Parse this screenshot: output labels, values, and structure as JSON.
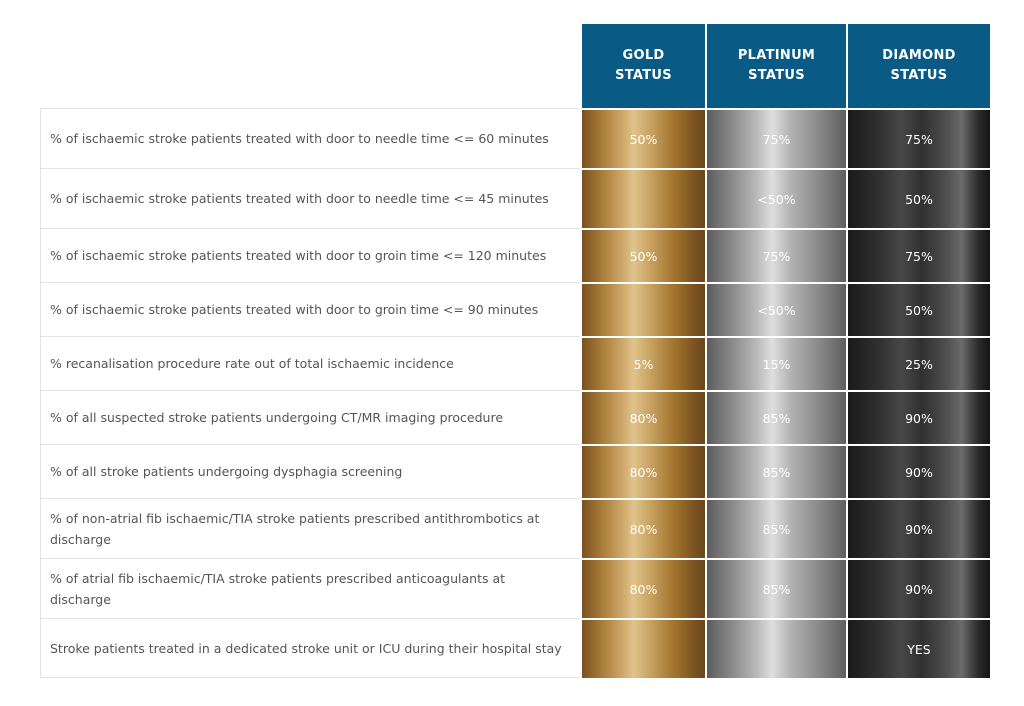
{
  "headers": {
    "gold": "GOLD\nSTATUS",
    "platinum": "PLATINUM\nSTATUS",
    "diamond": "DIAMOND\nSTATUS"
  },
  "rows": [
    {
      "label": "% of ischaemic stroke patients treated with door to needle time <= 60 minutes",
      "gold": "50%",
      "platinum": "75%",
      "diamond": "75%"
    },
    {
      "label": "% of ischaemic stroke patients treated with door to needle time <= 45 minutes",
      "gold": "",
      "platinum": "<50%",
      "diamond": "50%"
    },
    {
      "label": "% of ischaemic stroke patients treated with door to groin time <= 120 minutes",
      "gold": "50%",
      "platinum": "75%",
      "diamond": "75%"
    },
    {
      "label": "% of ischaemic stroke patients treated with door to groin time <= 90 minutes",
      "gold": "",
      "platinum": "<50%",
      "diamond": "50%"
    },
    {
      "label": "% recanalisation procedure rate out of total ischaemic incidence",
      "gold": "5%",
      "platinum": "15%",
      "diamond": "25%"
    },
    {
      "label": "% of all suspected stroke patients undergoing CT/MR imaging procedure",
      "gold": "80%",
      "platinum": "85%",
      "diamond": "90%"
    },
    {
      "label": "% of all stroke patients undergoing dysphagia screening",
      "gold": "80%",
      "platinum": "85%",
      "diamond": "90%"
    },
    {
      "label": "% of non-atrial fib ischaemic/TIA stroke patients prescribed antithrombotics at discharge",
      "gold": "80%",
      "platinum": "85%",
      "diamond": "90%"
    },
    {
      "label": "% of atrial fib ischaemic/TIA stroke patients prescribed anticoagulants at discharge",
      "gold": "80%",
      "platinum": "85%",
      "diamond": "90%"
    },
    {
      "label": "Stroke patients treated in a dedicated stroke unit or ICU during their hospital stay",
      "gold": "",
      "platinum": "",
      "diamond": "YES"
    }
  ]
}
